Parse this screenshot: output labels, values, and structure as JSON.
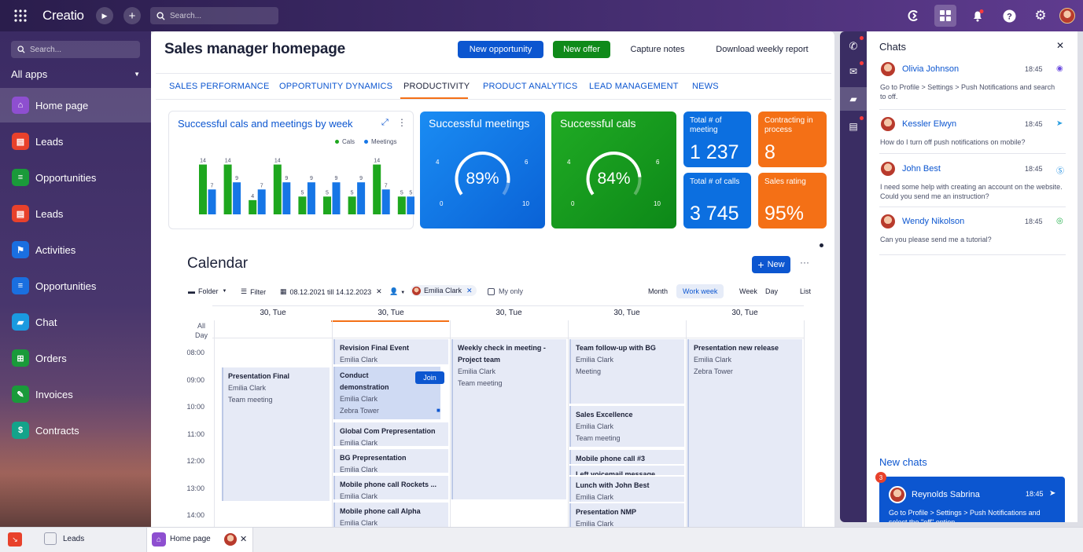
{
  "app": {
    "logo": "Creatio",
    "search_placeholder": "Search...",
    "sidebar_search_placeholder": "Search...",
    "all_apps": "All apps"
  },
  "sidebar": {
    "items": [
      {
        "label": "Home page",
        "icon": "home-icon",
        "color": "#8e4fd0",
        "active": true
      },
      {
        "label": "Leads",
        "icon": "leads-icon",
        "color": "#e8412b"
      },
      {
        "label": "Opportunities",
        "icon": "funnel-icon",
        "color": "#1a9a3a"
      },
      {
        "label": "Leads",
        "icon": "leads-icon",
        "color": "#e8412b"
      },
      {
        "label": "Activities",
        "icon": "flag-icon",
        "color": "#1a6fe0"
      },
      {
        "label": "Opportunities",
        "icon": "funnel-icon",
        "color": "#1a6fe0"
      },
      {
        "label": "Chat",
        "icon": "chat-icon",
        "color": "#1a9ae0"
      },
      {
        "label": "Orders",
        "icon": "cart-icon",
        "color": "#1a9a3a"
      },
      {
        "label": "Invoices",
        "icon": "invoice-icon",
        "color": "#1a9a3a"
      },
      {
        "label": "Contracts",
        "icon": "contract-icon",
        "color": "#13a38a"
      }
    ]
  },
  "header": {
    "title": "Sales manager homepage",
    "new_opportunity": "New opportunity",
    "new_offer": "New offer",
    "capture_notes": "Capture notes",
    "download_report": "Download weekly report"
  },
  "tabs": [
    {
      "label": "SALES PERFORMANCE"
    },
    {
      "label": "OPPORTUNITY DYNAMICS"
    },
    {
      "label": "PRODUCTIVITY",
      "active": true
    },
    {
      "label": "PRODUCT ANALYTICS"
    },
    {
      "label": "LEAD MANAGEMENT"
    },
    {
      "label": "NEWS"
    }
  ],
  "chart_data": {
    "type": "bar",
    "title": "Successful cals and meetings by week",
    "series": [
      {
        "name": "Cals",
        "color": "#1ea71e",
        "values": [
          14,
          14,
          4,
          14,
          5,
          5,
          5,
          14,
          5
        ]
      },
      {
        "name": "Meetings",
        "color": "#1676e6",
        "values": [
          7,
          9,
          7,
          9,
          9,
          9,
          9,
          7,
          5
        ]
      }
    ],
    "ylim": [
      0,
      15
    ],
    "legend": "top-right"
  },
  "metrics": {
    "meetings": {
      "title": "Successful meetings",
      "value": "89%",
      "pct": 0.89,
      "min": "4",
      "max": "6",
      "low": "0",
      "high": "10",
      "color": "#0c78e8"
    },
    "cals": {
      "title": "Successful cals",
      "value": "84%",
      "pct": 0.84,
      "min": "4",
      "max": "6",
      "low": "0",
      "high": "10",
      "color": "#159a1e"
    },
    "total_meeting": {
      "label": "Total # of meeting",
      "value": "1 237"
    },
    "contracting": {
      "label": "Contracting in process",
      "value": "8"
    },
    "total_calls": {
      "label": "Total # of calls",
      "value": "3 745"
    },
    "sales_rating": {
      "label": "Sales rating",
      "value": "95%"
    }
  },
  "calendar": {
    "title": "Calendar",
    "new_button": "New",
    "folder": "Folder",
    "filter": "Filter",
    "date_range": "08.12.2021 till 14.12.2023",
    "user_chip": "Emilia Clark",
    "my_only": "My only",
    "views": [
      "Month",
      "Work week",
      "Week",
      "Day",
      "List"
    ],
    "active_view": "Work week",
    "all_day": "All Day",
    "days": [
      "30, Tue",
      "30, Tue",
      "30, Tue",
      "30, Tue",
      "30, Tue"
    ],
    "hours": [
      "08:00",
      "09:00",
      "10:00",
      "11:00",
      "12:00",
      "13:00",
      "14:00"
    ],
    "join": "Join",
    "events": [
      {
        "col": 0,
        "title": "Presentation Final",
        "lines": [
          "Emilia Clark",
          "Team meeting"
        ]
      },
      {
        "col": 1,
        "title": "Revision Final Event",
        "lines": [
          "Emilia Clark"
        ]
      },
      {
        "col": 1,
        "title": "Conduct demonstration",
        "lines": [
          "Emilia Clark",
          "Zebra Tower"
        ]
      },
      {
        "col": 1,
        "title": "Global Com Prepresentation",
        "lines": [
          "Emilia Clark"
        ]
      },
      {
        "col": 1,
        "title": "BG Prepresentation",
        "lines": [
          "Emilia Clark"
        ]
      },
      {
        "col": 1,
        "title": "Mobile phone call Rockets ...",
        "lines": [
          "Emilia Clark"
        ]
      },
      {
        "col": 1,
        "title": "Mobile phone call Alpha",
        "lines": [
          "Emilia Clark"
        ]
      },
      {
        "col": 2,
        "title": "Weekly check in meeting - Project team",
        "lines": [
          "Emilia Clark",
          "Team meeting"
        ]
      },
      {
        "col": 3,
        "title": "Team follow-up with BG",
        "lines": [
          "Emilia Clark",
          "Meeting"
        ]
      },
      {
        "col": 3,
        "title": "Sales Excellence",
        "lines": [
          "Emilia Clark",
          "Team meeting"
        ]
      },
      {
        "col": 3,
        "title": "Mobile phone call #3",
        "lines": []
      },
      {
        "col": 3,
        "title": "Left voicemail message",
        "lines": []
      },
      {
        "col": 3,
        "title": "Lunch with John Best",
        "lines": [
          "Emilia Clark"
        ]
      },
      {
        "col": 3,
        "title": "Presentation NMP",
        "lines": [
          "Emilia Clark"
        ]
      },
      {
        "col": 4,
        "title": "Presentation new release",
        "lines": [
          "Emilia Clark",
          "Zebra Tower"
        ]
      }
    ]
  },
  "chats": {
    "title": "Chats",
    "items": [
      {
        "name": "Olivia Johnson",
        "time": "18:45",
        "msg": "Go to Profile > Settings > Push Notifications and search to off.",
        "channel": "messenger-icon"
      },
      {
        "name": "Kessler Elwyn",
        "time": "18:45",
        "msg": "How do I turn off push notifications on mobile?",
        "channel": "telegram-icon"
      },
      {
        "name": "John Best",
        "time": "18:45",
        "msg": "I need some help with creating an account on the website. Could you send me an instruction?",
        "channel": "skype-icon"
      },
      {
        "name": "Wendy Nikolson",
        "time": "18:45",
        "msg": "Can you please send me a tutorial?",
        "channel": "whatsapp-icon"
      }
    ],
    "new_chats": "New chats",
    "new_chat": {
      "name": "Reynolds Sabrina",
      "time": "18:45",
      "msg": "Go to Profile > Settings > Push Notifications and select the \"off\" option.",
      "badge": "3"
    }
  },
  "taskbar": {
    "items": [
      "Leads",
      "Home page"
    ]
  }
}
